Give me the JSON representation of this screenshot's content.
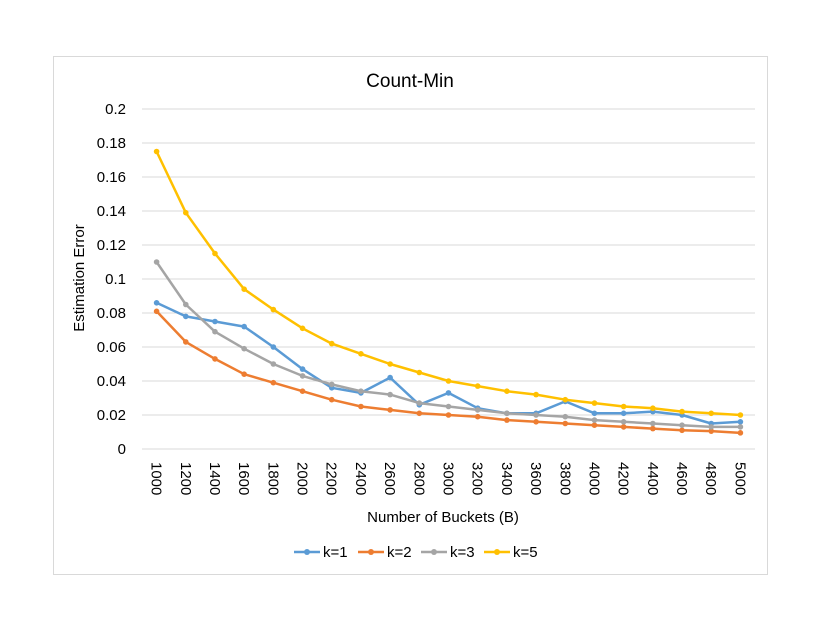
{
  "chart_data": {
    "type": "line",
    "title": "Count-Min",
    "xlabel": "Number of Buckets (B)",
    "ylabel": "Estimation Error",
    "ylim": [
      0,
      0.2
    ],
    "yticks": [
      "0",
      "0.02",
      "0.04",
      "0.06",
      "0.08",
      "0.1",
      "0.12",
      "0.14",
      "0.16",
      "0.18",
      "0.2"
    ],
    "grid": true,
    "legend_position": "bottom",
    "categories": [
      "1000",
      "1200",
      "1400",
      "1600",
      "1800",
      "2000",
      "2200",
      "2400",
      "2600",
      "2800",
      "3000",
      "3200",
      "3400",
      "3600",
      "3800",
      "4000",
      "4200",
      "4400",
      "4600",
      "4800",
      "5000"
    ],
    "series": [
      {
        "name": "k=1",
        "color": "#5b9bd5",
        "values": [
          0.086,
          0.078,
          0.075,
          0.072,
          0.06,
          0.047,
          0.036,
          0.033,
          0.042,
          0.026,
          0.033,
          0.024,
          0.021,
          0.021,
          0.028,
          0.021,
          0.021,
          0.022,
          0.02,
          0.015,
          0.016
        ]
      },
      {
        "name": "k=2",
        "color": "#ed7d31",
        "values": [
          0.081,
          0.063,
          0.053,
          0.044,
          0.039,
          0.034,
          0.029,
          0.025,
          0.023,
          0.021,
          0.02,
          0.019,
          0.017,
          0.016,
          0.015,
          0.014,
          0.013,
          0.012,
          0.011,
          0.0105,
          0.0095
        ]
      },
      {
        "name": "k=3",
        "color": "#a5a5a5",
        "values": [
          0.11,
          0.085,
          0.069,
          0.059,
          0.05,
          0.043,
          0.038,
          0.034,
          0.032,
          0.027,
          0.025,
          0.023,
          0.021,
          0.02,
          0.019,
          0.017,
          0.016,
          0.015,
          0.014,
          0.013,
          0.013
        ]
      },
      {
        "name": "k=5",
        "color": "#ffc000",
        "values": [
          0.175,
          0.139,
          0.115,
          0.094,
          0.082,
          0.071,
          0.062,
          0.056,
          0.05,
          0.045,
          0.04,
          0.037,
          0.034,
          0.032,
          0.029,
          0.027,
          0.025,
          0.024,
          0.022,
          0.021,
          0.02
        ]
      }
    ]
  }
}
